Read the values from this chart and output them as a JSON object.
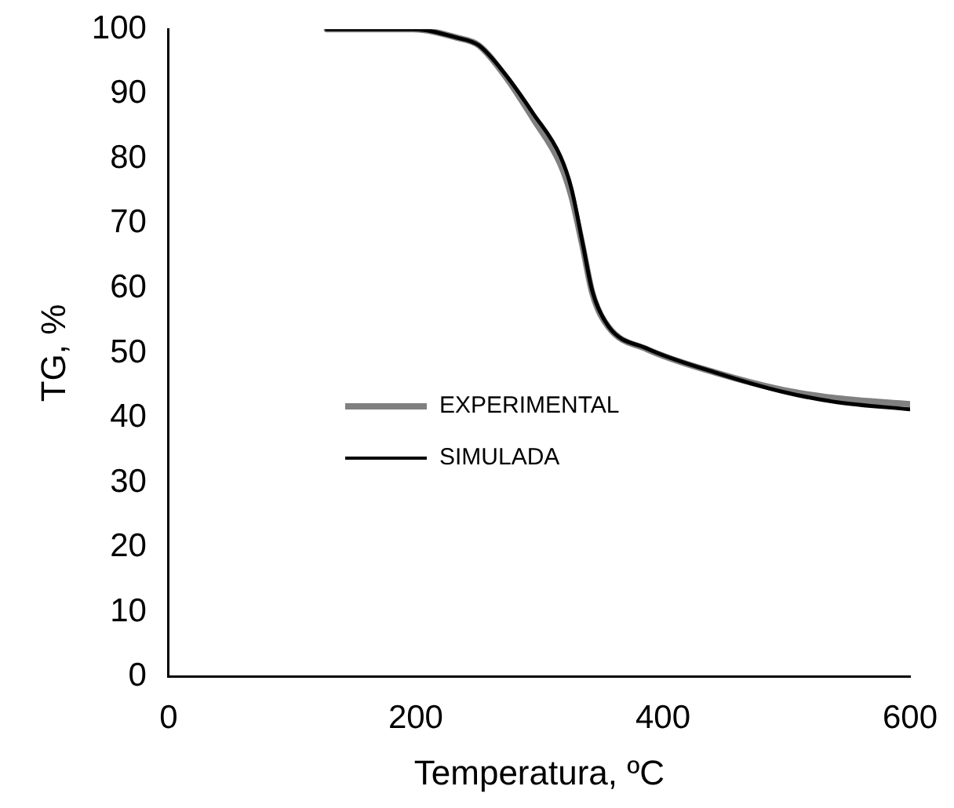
{
  "chart_data": {
    "type": "line",
    "xlabel": "Temperatura, ºC",
    "ylabel": "TG, %",
    "xlim": [
      0,
      600
    ],
    "xticks": [
      0,
      200,
      400,
      600
    ],
    "ylim": [
      0,
      100
    ],
    "yticks": [
      0,
      10,
      20,
      30,
      40,
      50,
      60,
      70,
      80,
      90,
      100
    ],
    "grid": false,
    "legend": "left",
    "marker": "none",
    "line_style": "solid",
    "series": [
      {
        "name": "EXPERIMENTAL",
        "color": "#808080",
        "x": [
          128,
          198,
          233,
          251,
          273,
          295,
          317,
          326,
          335,
          343,
          356,
          387,
          444,
          497,
          541,
          600
        ],
        "values": [
          100,
          100,
          98.7,
          97.5,
          92.6,
          86.2,
          79.2,
          74.2,
          66.5,
          59.2,
          54.0,
          50.6,
          46.9,
          44.3,
          43.0,
          42.1
        ]
      },
      {
        "name": "SIMULADA",
        "color": "#000000",
        "x": [
          128,
          198,
          233,
          251,
          273,
          295,
          317,
          326,
          335,
          343,
          356,
          387,
          444,
          497,
          541,
          600
        ],
        "values": [
          100,
          100,
          98.7,
          97.5,
          92.9,
          87.0,
          80.4,
          75.4,
          67.0,
          59.5,
          54.1,
          50.7,
          46.9,
          44.0,
          42.4,
          41.3
        ]
      }
    ]
  }
}
